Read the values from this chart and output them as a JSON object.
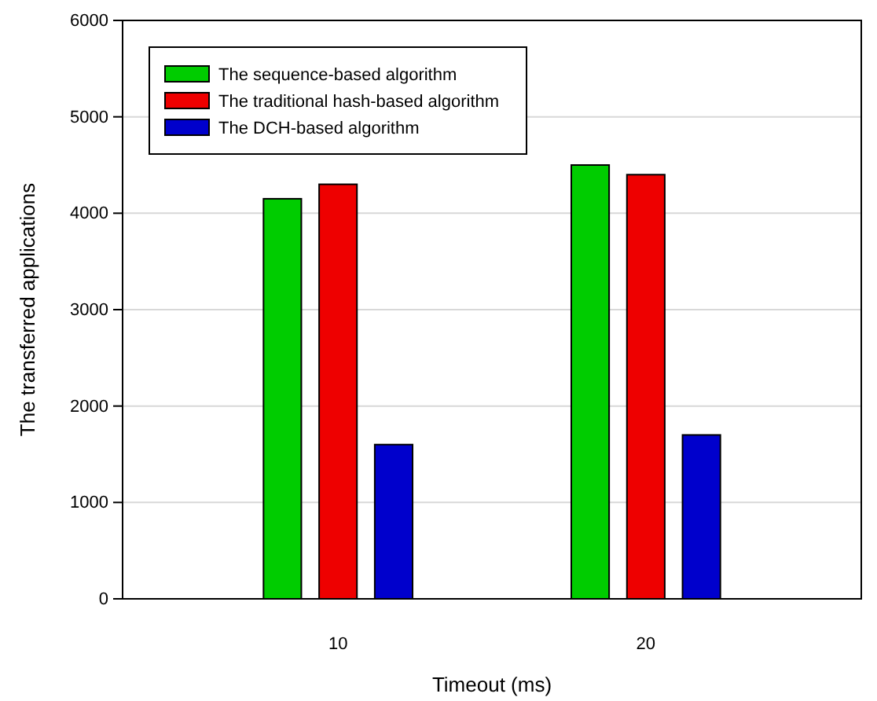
{
  "chart_data": {
    "type": "bar",
    "xlabel": "Timeout (ms)",
    "ylabel": "The transferred applications",
    "categories": [
      "10",
      "20"
    ],
    "series": [
      {
        "name": "The sequence-based algorithm",
        "color": "#00cc00",
        "values": [
          4150,
          4500
        ]
      },
      {
        "name": "The traditional hash-based algorithm",
        "color": "#ee0000",
        "values": [
          4300,
          4400
        ]
      },
      {
        "name": "The DCH-based algorithm",
        "color": "#0000cc",
        "values": [
          1600,
          1700
        ]
      }
    ],
    "ylim": [
      0,
      6000
    ],
    "yticks": [
      0,
      1000,
      2000,
      3000,
      4000,
      5000,
      6000
    ],
    "grid": "y",
    "legend": "top left"
  }
}
